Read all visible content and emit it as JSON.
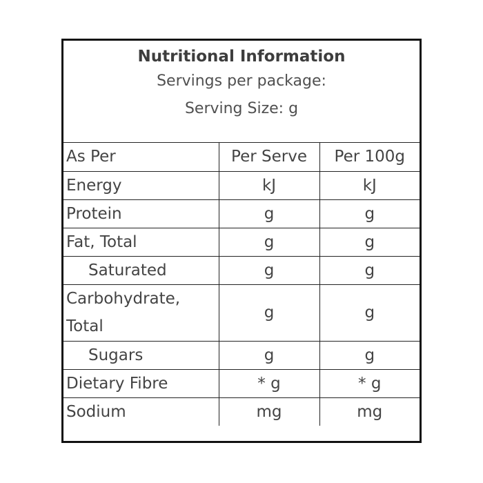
{
  "header": {
    "title": "Nutritional Information",
    "servings": "Servings per package:",
    "serving_size": "Serving Size: g"
  },
  "columns": [
    "As Per",
    "Per Serve",
    "Per 100g"
  ],
  "rows": [
    {
      "label": "Energy",
      "per_serve": "kJ",
      "per_100g": "kJ"
    },
    {
      "label": "Protein",
      "per_serve": "g",
      "per_100g": "g"
    },
    {
      "label": "Fat, Total",
      "per_serve": "g",
      "per_100g": "g"
    },
    {
      "label": "Saturated",
      "per_serve": "g",
      "per_100g": "g"
    },
    {
      "label": "Carbohydrate, Total",
      "per_serve": "g",
      "per_100g": "g"
    },
    {
      "label": "Sugars",
      "per_serve": "g",
      "per_100g": "g"
    },
    {
      "label": "Dietary Fibre",
      "per_serve": "* g",
      "per_100g": "* g"
    },
    {
      "label": "Sodium",
      "per_serve": "mg",
      "per_100g": "mg"
    }
  ]
}
